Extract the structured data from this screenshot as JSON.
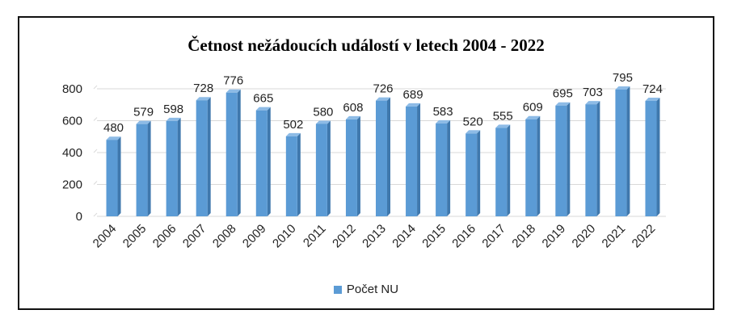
{
  "chart_data": {
    "type": "bar",
    "title": "Četnost nežádoucích událostí v letech 2004 - 2022",
    "xlabel": "",
    "ylabel": "",
    "categories": [
      "2004",
      "2005",
      "2006",
      "2007",
      "2008",
      "2009",
      "2010",
      "2011",
      "2012",
      "2013",
      "2014",
      "2015",
      "2016",
      "2017",
      "2018",
      "2019",
      "2020",
      "2021",
      "2022"
    ],
    "series": [
      {
        "name": "Počet NU",
        "values": [
          480,
          579,
          598,
          728,
          776,
          665,
          502,
          580,
          608,
          726,
          689,
          583,
          520,
          555,
          609,
          695,
          703,
          795,
          724
        ]
      }
    ],
    "yticks": [
      0,
      200,
      400,
      600,
      800
    ],
    "ylim": [
      0,
      800
    ],
    "grid": true,
    "legend": "bottom",
    "colors": {
      "bar": "#5b9bd5",
      "bar_side": "#3f78ad",
      "bar_top": "#8dbbe6",
      "grid": "#d9d9d9"
    }
  }
}
